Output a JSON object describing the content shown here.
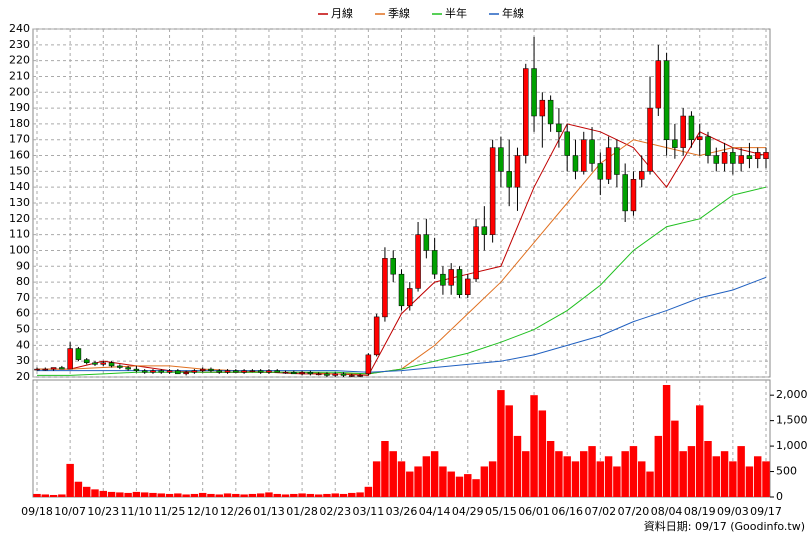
{
  "chart_data": [
    {
      "type": "candlestick",
      "legend": "top",
      "grid": true,
      "up_color": "#ff0000",
      "down_color": "#00a000",
      "ylim": [
        20,
        240
      ],
      "yticks": [
        20,
        30,
        40,
        50,
        60,
        70,
        80,
        90,
        100,
        110,
        120,
        130,
        140,
        150,
        160,
        170,
        180,
        190,
        200,
        210,
        220,
        230,
        240
      ],
      "open": [
        25,
        25,
        25,
        26,
        25,
        38,
        31,
        29,
        28,
        29,
        27,
        26,
        25,
        24,
        23,
        24,
        23,
        24,
        22,
        23,
        24,
        25,
        24,
        23,
        24,
        23,
        24,
        24,
        23,
        24,
        23,
        23,
        22,
        23,
        22,
        22,
        21,
        22,
        21,
        21,
        22,
        34,
        58,
        95,
        85,
        65,
        76,
        110,
        100,
        85,
        78,
        88,
        72,
        82,
        115,
        110,
        165,
        150,
        140,
        160,
        215,
        185,
        195,
        180,
        175,
        160,
        150,
        170,
        155,
        145,
        165,
        148,
        125,
        145,
        150,
        190,
        220,
        170,
        165,
        185,
        170,
        172,
        160,
        155,
        162,
        155,
        160,
        158,
        158
      ],
      "high": [
        26,
        26,
        26,
        27,
        42,
        39,
        32,
        30,
        30,
        30,
        28,
        27,
        27,
        25,
        25,
        25,
        25,
        25,
        24,
        25,
        26,
        26,
        25,
        25,
        25,
        25,
        25,
        25,
        25,
        25,
        24,
        24,
        24,
        24,
        23,
        23,
        23,
        23,
        22,
        22,
        35,
        60,
        102,
        100,
        88,
        80,
        118,
        120,
        108,
        90,
        92,
        90,
        85,
        120,
        128,
        170,
        172,
        170,
        165,
        218,
        235,
        200,
        198,
        190,
        180,
        170,
        175,
        178,
        162,
        172,
        170,
        155,
        150,
        160,
        210,
        230,
        225,
        180,
        190,
        188,
        180,
        175,
        165,
        168,
        165,
        165,
        168,
        165,
        165
      ],
      "low": [
        24,
        24,
        24,
        25,
        25,
        30,
        28,
        27,
        27,
        26,
        25,
        24,
        23,
        22,
        22,
        22,
        22,
        22,
        21,
        22,
        23,
        23,
        22,
        22,
        23,
        22,
        23,
        22,
        22,
        23,
        22,
        22,
        21,
        21,
        21,
        20,
        20,
        20,
        20,
        20,
        21,
        33,
        55,
        80,
        62,
        62,
        74,
        95,
        82,
        72,
        72,
        70,
        70,
        80,
        100,
        105,
        140,
        128,
        125,
        155,
        175,
        165,
        175,
        165,
        150,
        145,
        148,
        150,
        135,
        142,
        140,
        118,
        122,
        140,
        148,
        185,
        160,
        158,
        160,
        165,
        160,
        155,
        150,
        150,
        148,
        150,
        152,
        152,
        152
      ],
      "close": [
        25,
        25,
        26,
        25,
        38,
        31,
        29,
        28,
        29,
        27,
        26,
        25,
        24,
        23,
        24,
        23,
        24,
        22,
        23,
        24,
        25,
        24,
        23,
        24,
        23,
        24,
        24,
        23,
        24,
        23,
        23,
        22,
        23,
        22,
        22,
        21,
        22,
        21,
        21,
        21,
        34,
        58,
        95,
        85,
        65,
        76,
        110,
        100,
        85,
        78,
        88,
        72,
        82,
        115,
        110,
        165,
        150,
        140,
        160,
        215,
        185,
        195,
        180,
        175,
        160,
        150,
        170,
        155,
        145,
        165,
        148,
        125,
        145,
        150,
        190,
        220,
        170,
        165,
        185,
        170,
        172,
        160,
        155,
        162,
        155,
        160,
        158,
        162,
        162
      ],
      "lines": [
        {
          "name": "月線",
          "color": "#c00000",
          "x": [
            0,
            4,
            8,
            12,
            16,
            20,
            24,
            28,
            32,
            36,
            40,
            44,
            48,
            52,
            56,
            60,
            64,
            68,
            72,
            76,
            80,
            84,
            88
          ],
          "values": [
            25,
            25,
            30,
            27,
            24,
            23,
            23,
            23,
            22,
            22,
            21,
            60,
            80,
            85,
            90,
            140,
            180,
            175,
            165,
            140,
            175,
            165,
            160
          ]
        },
        {
          "name": "季線",
          "color": "#e07020",
          "x": [
            0,
            4,
            8,
            12,
            16,
            20,
            24,
            28,
            32,
            36,
            40,
            44,
            48,
            52,
            56,
            60,
            64,
            68,
            72,
            76,
            80,
            84,
            88
          ],
          "values": [
            25,
            25,
            26,
            27,
            27,
            25,
            24,
            23,
            23,
            22,
            22,
            25,
            40,
            60,
            80,
            105,
            130,
            155,
            170,
            165,
            160,
            165,
            165
          ]
        },
        {
          "name": "半年",
          "color": "#20c020",
          "x": [
            0,
            4,
            8,
            12,
            16,
            20,
            24,
            28,
            32,
            36,
            40,
            44,
            48,
            52,
            56,
            60,
            64,
            68,
            72,
            76,
            80,
            84,
            88
          ],
          "values": [
            21,
            21,
            22,
            23,
            23,
            23,
            23,
            23,
            23,
            23,
            22,
            25,
            30,
            35,
            42,
            50,
            62,
            78,
            100,
            115,
            120,
            135,
            140
          ]
        },
        {
          "name": "年線",
          "color": "#2060c0",
          "x": [
            0,
            4,
            8,
            12,
            16,
            20,
            24,
            28,
            32,
            36,
            40,
            44,
            48,
            52,
            56,
            60,
            64,
            68,
            72,
            76,
            80,
            84,
            88
          ],
          "values": [
            24,
            24,
            24,
            24,
            24,
            24,
            24,
            24,
            24,
            24,
            23,
            24,
            26,
            28,
            30,
            34,
            40,
            46,
            55,
            62,
            70,
            75,
            83
          ]
        }
      ]
    },
    {
      "type": "bar",
      "color": "#ff0000",
      "ylim": [
        0,
        2200
      ],
      "yticks": [
        0,
        500,
        {
          "value": 1000,
          "label": "1,000"
        },
        {
          "value": 1500,
          "label": "1,500"
        },
        {
          "value": 2000,
          "label": "2,000"
        }
      ],
      "categories": [
        "09/18",
        null,
        null,
        null,
        "10/07",
        null,
        null,
        null,
        "10/23",
        null,
        null,
        null,
        "11/10",
        null,
        null,
        null,
        "11/25",
        null,
        null,
        null,
        "12/10",
        null,
        null,
        null,
        "12/26",
        null,
        null,
        null,
        "01/13",
        null,
        null,
        null,
        "01/28",
        null,
        null,
        null,
        "02/23",
        null,
        null,
        null,
        "03/11",
        null,
        null,
        null,
        "03/26",
        null,
        null,
        null,
        "04/14",
        null,
        null,
        null,
        "04/29",
        null,
        null,
        null,
        "05/15",
        null,
        null,
        null,
        "06/01",
        null,
        null,
        null,
        "06/16",
        null,
        null,
        null,
        "07/02",
        null,
        null,
        null,
        "07/20",
        null,
        null,
        null,
        "08/04",
        null,
        null,
        null,
        "08/19",
        null,
        null,
        null,
        "09/03",
        null,
        null,
        null,
        "09/17"
      ],
      "values": [
        60,
        50,
        40,
        50,
        650,
        300,
        200,
        150,
        120,
        100,
        90,
        80,
        100,
        90,
        80,
        70,
        60,
        70,
        50,
        60,
        80,
        60,
        50,
        70,
        60,
        50,
        60,
        70,
        90,
        60,
        50,
        60,
        70,
        60,
        50,
        60,
        70,
        60,
        80,
        90,
        200,
        700,
        1100,
        900,
        700,
        500,
        600,
        800,
        900,
        600,
        500,
        400,
        450,
        350,
        600,
        700,
        2100,
        1800,
        1200,
        900,
        2000,
        1700,
        1100,
        900,
        800,
        700,
        900,
        1000,
        700,
        800,
        600,
        900,
        1000,
        700,
        500,
        1200,
        2200,
        1500,
        900,
        1000,
        1800,
        1100,
        800,
        900,
        700,
        1000,
        600,
        800,
        700
      ],
      "source": "資料日期: 09/17 (Goodinfo.tw)"
    }
  ]
}
